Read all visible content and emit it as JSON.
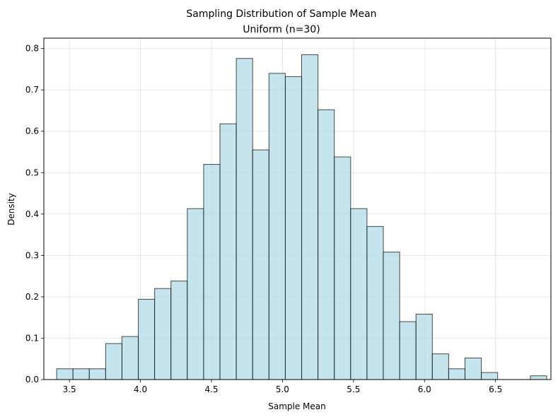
{
  "chart_data": {
    "type": "bar",
    "title": "Sampling Distribution of Sample Mean",
    "subtitle": "Uniform (n=30)",
    "xlabel": "Sample Mean",
    "ylabel": "Density",
    "xlim": [
      3.32,
      6.89
    ],
    "ylim": [
      0,
      0.825
    ],
    "grid": true,
    "xticks": [
      "3.5",
      "4.0",
      "4.5",
      "5.0",
      "5.5",
      "6.0",
      "6.5"
    ],
    "yticks": [
      "0.0",
      "0.1",
      "0.2",
      "0.3",
      "0.4",
      "0.5",
      "0.6",
      "0.7",
      "0.8"
    ],
    "bar_color": "#add8e6",
    "edge_color": "#000000",
    "bins": [
      {
        "x0": 3.41,
        "x1": 3.525,
        "value": 0.026
      },
      {
        "x0": 3.525,
        "x1": 3.64,
        "value": 0.026
      },
      {
        "x0": 3.64,
        "x1": 3.755,
        "value": 0.026
      },
      {
        "x0": 3.755,
        "x1": 3.87,
        "value": 0.087
      },
      {
        "x0": 3.87,
        "x1": 3.985,
        "value": 0.104
      },
      {
        "x0": 3.985,
        "x1": 4.1,
        "value": 0.194
      },
      {
        "x0": 4.1,
        "x1": 4.215,
        "value": 0.22
      },
      {
        "x0": 4.215,
        "x1": 4.33,
        "value": 0.238
      },
      {
        "x0": 4.33,
        "x1": 4.445,
        "value": 0.413
      },
      {
        "x0": 4.445,
        "x1": 4.56,
        "value": 0.52
      },
      {
        "x0": 4.56,
        "x1": 4.675,
        "value": 0.618
      },
      {
        "x0": 4.675,
        "x1": 4.79,
        "value": 0.776
      },
      {
        "x0": 4.79,
        "x1": 4.905,
        "value": 0.555
      },
      {
        "x0": 4.905,
        "x1": 5.02,
        "value": 0.74
      },
      {
        "x0": 5.02,
        "x1": 5.135,
        "value": 0.732
      },
      {
        "x0": 5.135,
        "x1": 5.25,
        "value": 0.785
      },
      {
        "x0": 5.25,
        "x1": 5.365,
        "value": 0.652
      },
      {
        "x0": 5.365,
        "x1": 5.48,
        "value": 0.538
      },
      {
        "x0": 5.48,
        "x1": 5.595,
        "value": 0.413
      },
      {
        "x0": 5.595,
        "x1": 5.71,
        "value": 0.37
      },
      {
        "x0": 5.71,
        "x1": 5.825,
        "value": 0.308
      },
      {
        "x0": 5.825,
        "x1": 5.94,
        "value": 0.14
      },
      {
        "x0": 5.94,
        "x1": 6.055,
        "value": 0.158
      },
      {
        "x0": 6.055,
        "x1": 6.17,
        "value": 0.062
      },
      {
        "x0": 6.17,
        "x1": 6.285,
        "value": 0.026
      },
      {
        "x0": 6.285,
        "x1": 6.4,
        "value": 0.052
      },
      {
        "x0": 6.4,
        "x1": 6.515,
        "value": 0.017
      },
      {
        "x0": 6.515,
        "x1": 6.63,
        "value": 0.0
      },
      {
        "x0": 6.63,
        "x1": 6.745,
        "value": 0.0
      },
      {
        "x0": 6.745,
        "x1": 6.86,
        "value": 0.009
      }
    ]
  }
}
